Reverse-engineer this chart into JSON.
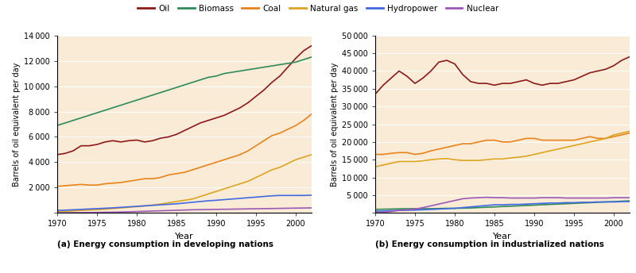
{
  "years": [
    1970,
    1971,
    1972,
    1973,
    1974,
    1975,
    1976,
    1977,
    1978,
    1979,
    1980,
    1981,
    1982,
    1983,
    1984,
    1985,
    1986,
    1987,
    1988,
    1989,
    1990,
    1991,
    1992,
    1993,
    1994,
    1995,
    1996,
    1997,
    1998,
    1999,
    2000,
    2001,
    2002
  ],
  "developing": {
    "Oil": [
      4600,
      4700,
      4900,
      5300,
      5300,
      5400,
      5600,
      5700,
      5600,
      5700,
      5750,
      5600,
      5700,
      5900,
      6000,
      6200,
      6500,
      6800,
      7100,
      7300,
      7500,
      7700,
      8000,
      8300,
      8700,
      9200,
      9700,
      10300,
      10800,
      11500,
      12200,
      12800,
      13200
    ],
    "Biomass": [
      6900,
      7100,
      7300,
      7500,
      7700,
      7900,
      8100,
      8300,
      8500,
      8700,
      8900,
      9100,
      9300,
      9500,
      9700,
      9900,
      10100,
      10300,
      10500,
      10700,
      10800,
      11000,
      11100,
      11200,
      11300,
      11400,
      11500,
      11600,
      11700,
      11800,
      11900,
      12100,
      12300
    ],
    "Coal": [
      2100,
      2150,
      2200,
      2250,
      2200,
      2200,
      2300,
      2350,
      2400,
      2500,
      2600,
      2700,
      2700,
      2800,
      3000,
      3100,
      3200,
      3400,
      3600,
      3800,
      4000,
      4200,
      4400,
      4600,
      4900,
      5300,
      5700,
      6100,
      6300,
      6600,
      6900,
      7300,
      7800
    ],
    "Natural gas": [
      100,
      130,
      160,
      200,
      230,
      260,
      300,
      350,
      400,
      450,
      500,
      560,
      620,
      700,
      800,
      900,
      1000,
      1100,
      1300,
      1500,
      1700,
      1900,
      2100,
      2300,
      2500,
      2800,
      3100,
      3400,
      3600,
      3900,
      4200,
      4400,
      4600
    ],
    "Hydropower": [
      200,
      220,
      250,
      280,
      310,
      340,
      370,
      400,
      440,
      480,
      520,
      560,
      600,
      640,
      680,
      720,
      780,
      840,
      900,
      960,
      1000,
      1050,
      1100,
      1150,
      1200,
      1250,
      1300,
      1350,
      1380,
      1380,
      1380,
      1380,
      1400
    ],
    "Nuclear": [
      10,
      15,
      20,
      25,
      30,
      40,
      50,
      60,
      70,
      90,
      110,
      130,
      150,
      170,
      190,
      210,
      230,
      250,
      260,
      270,
      280,
      290,
      300,
      310,
      320,
      330,
      340,
      350,
      360,
      370,
      380,
      390,
      400
    ]
  },
  "industrialized": {
    "Oil": [
      33500,
      36000,
      38000,
      40000,
      38500,
      36500,
      38000,
      40000,
      42500,
      43000,
      42000,
      39000,
      37000,
      36500,
      36500,
      36000,
      36500,
      36500,
      37000,
      37500,
      36500,
      36000,
      36500,
      36500,
      37000,
      37500,
      38500,
      39500,
      40000,
      40500,
      41500,
      43000,
      44000
    ],
    "Biomass": [
      1000,
      1050,
      1100,
      1150,
      1200,
      1200,
      1200,
      1200,
      1250,
      1300,
      1300,
      1350,
      1400,
      1500,
      1600,
      1700,
      1800,
      1900,
      2000,
      2100,
      2200,
      2300,
      2400,
      2500,
      2600,
      2700,
      2800,
      2900,
      3000,
      3100,
      3200,
      3300,
      3400
    ],
    "Coal": [
      16500,
      16500,
      16800,
      17000,
      17000,
      16500,
      16800,
      17500,
      18000,
      18500,
      19000,
      19500,
      19500,
      20000,
      20500,
      20500,
      20000,
      20000,
      20500,
      21000,
      21000,
      20500,
      20500,
      20500,
      20500,
      20500,
      21000,
      21500,
      21000,
      21000,
      21500,
      22000,
      22500
    ],
    "Natural gas": [
      13000,
      13500,
      14000,
      14500,
      14500,
      14500,
      14700,
      15000,
      15200,
      15300,
      15000,
      14800,
      14800,
      14800,
      15000,
      15200,
      15200,
      15500,
      15700,
      16000,
      16500,
      17000,
      17500,
      18000,
      18500,
      19000,
      19500,
      20000,
      20500,
      21000,
      22000,
      22500,
      23000
    ],
    "Hydropower": [
      500,
      550,
      650,
      700,
      750,
      800,
      900,
      1000,
      1100,
      1200,
      1300,
      1500,
      1700,
      1900,
      2100,
      2300,
      2300,
      2400,
      2400,
      2500,
      2600,
      2700,
      2800,
      2800,
      2900,
      2900,
      3000,
      3000,
      3100,
      3100,
      3100,
      3200,
      3200
    ],
    "Nuclear": [
      100,
      200,
      400,
      700,
      900,
      1100,
      1500,
      2000,
      2500,
      3000,
      3500,
      4000,
      4200,
      4300,
      4400,
      4300,
      4300,
      4200,
      4200,
      4200,
      4200,
      4300,
      4300,
      4300,
      4200,
      4200,
      4200,
      4200,
      4200,
      4200,
      4300,
      4300,
      4300
    ]
  },
  "series_colors": {
    "Oil": "#8B1A1A",
    "Biomass": "#2E8B57",
    "Coal": "#E8831A",
    "Natural gas": "#DAA520",
    "Hydropower": "#4169E1",
    "Nuclear": "#9B59B6"
  },
  "series_order": [
    "Oil",
    "Biomass",
    "Coal",
    "Natural gas",
    "Hydropower",
    "Nuclear"
  ],
  "background_color": "#FAEBD7",
  "subplot_a_title": "(a) Energy consumption in developing nations",
  "subplot_b_title": "(b) Energy consumption in industrialized nations",
  "ylabel": "Barrels of oil equivalent per day",
  "xlabel": "Year",
  "ylim_a": [
    0,
    14000
  ],
  "ylim_b": [
    0,
    50000
  ],
  "yticks_a": [
    0,
    2000,
    4000,
    6000,
    8000,
    10000,
    12000,
    14000
  ],
  "yticks_b": [
    0,
    5000,
    10000,
    15000,
    20000,
    25000,
    30000,
    35000,
    40000,
    45000,
    50000
  ],
  "xticks": [
    1970,
    1975,
    1980,
    1985,
    1990,
    1995,
    2000
  ]
}
